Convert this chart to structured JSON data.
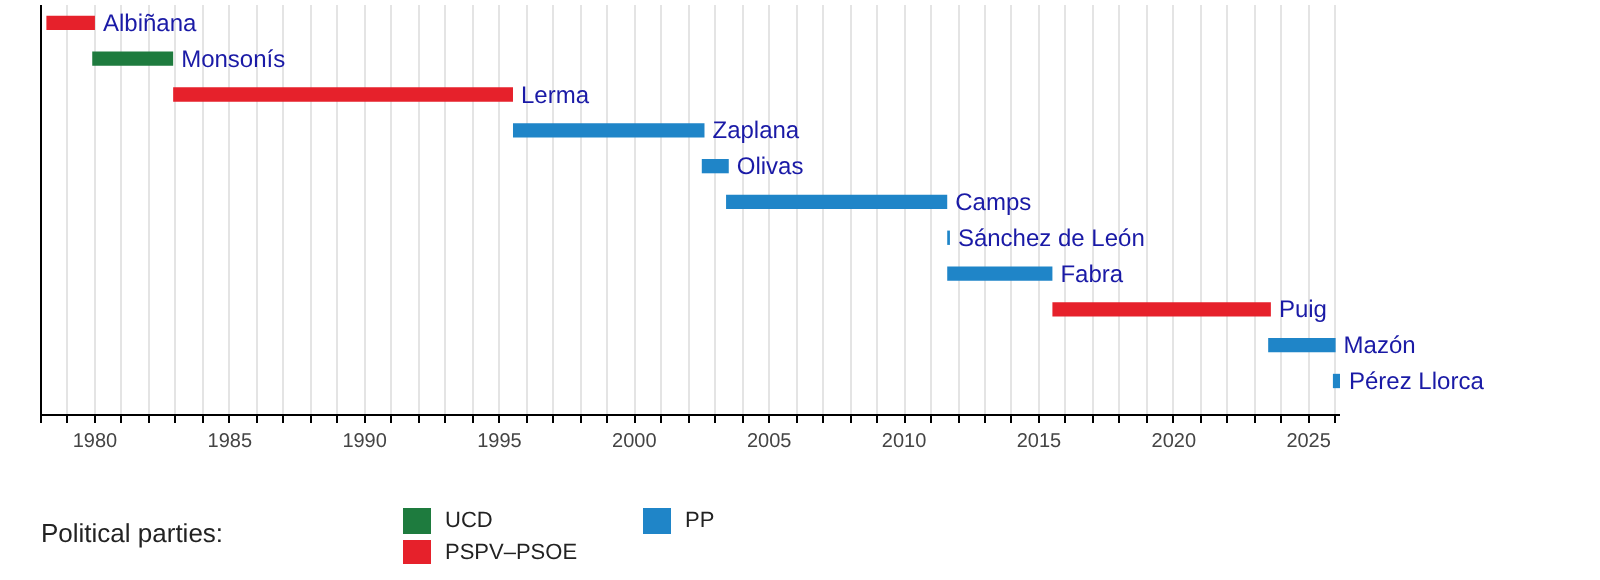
{
  "chart_data": {
    "type": "bar",
    "orientation": "horizontal",
    "legend_title": "Political parties:",
    "legend": "bottom",
    "grid": "x",
    "tick_labels": "x",
    "categories": [
      "Albiñana",
      "Monsonís",
      "Lerma",
      "Zaplana",
      "Olivas",
      "Camps",
      "Sánchez de León",
      "Fabra",
      "Puig",
      "Mazón",
      "Pérez Llorca"
    ],
    "xlim": [
      1978,
      2026.2
    ],
    "xticks": [
      {
        "value": 1978,
        "label": null
      },
      {
        "value": 1979,
        "label": null
      },
      1980,
      {
        "value": 1981,
        "label": null
      },
      {
        "value": 1982,
        "label": null
      },
      {
        "value": 1983,
        "label": null
      },
      {
        "value": 1984,
        "label": null
      },
      1985,
      {
        "value": 1986,
        "label": null
      },
      {
        "value": 1987,
        "label": null
      },
      {
        "value": 1988,
        "label": null
      },
      {
        "value": 1989,
        "label": null
      },
      1990,
      {
        "value": 1991,
        "label": null
      },
      {
        "value": 1992,
        "label": null
      },
      {
        "value": 1993,
        "label": null
      },
      {
        "value": 1994,
        "label": null
      },
      1995,
      {
        "value": 1996,
        "label": null
      },
      {
        "value": 1997,
        "label": null
      },
      {
        "value": 1998,
        "label": null
      },
      {
        "value": 1999,
        "label": null
      },
      2000,
      {
        "value": 2001,
        "label": null
      },
      {
        "value": 2002,
        "label": null
      },
      {
        "value": 2003,
        "label": null
      },
      {
        "value": 2004,
        "label": null
      },
      2005,
      {
        "value": 2006,
        "label": null
      },
      {
        "value": 2007,
        "label": null
      },
      {
        "value": 2008,
        "label": null
      },
      {
        "value": 2009,
        "label": null
      },
      2010,
      {
        "value": 2011,
        "label": null
      },
      {
        "value": 2012,
        "label": null
      },
      {
        "value": 2013,
        "label": null
      },
      {
        "value": 2014,
        "label": null
      },
      2015,
      {
        "value": 2016,
        "label": null
      },
      {
        "value": 2017,
        "label": null
      },
      {
        "value": 2018,
        "label": null
      },
      {
        "value": 2019,
        "label": null
      },
      2020,
      {
        "value": 2021,
        "label": null
      },
      {
        "value": 2022,
        "label": null
      },
      {
        "value": 2023,
        "label": null
      },
      {
        "value": 2024,
        "label": null
      },
      2025,
      {
        "value": 2026,
        "label": null
      }
    ],
    "series": [
      {
        "name": "UCD",
        "color": "#1e7b3e",
        "base": [
          null,
          1979.9,
          null,
          null,
          null,
          null,
          null,
          null,
          null,
          null,
          null
        ],
        "values": [
          null,
          3.0,
          null,
          null,
          null,
          null,
          null,
          null,
          null,
          null,
          null
        ]
      },
      {
        "name": "PSPV–PSOE",
        "color": "#e6212b",
        "base": [
          1978.2,
          null,
          1982.9,
          null,
          null,
          null,
          null,
          null,
          2015.5,
          null,
          null
        ],
        "values": [
          1.8,
          null,
          12.6,
          null,
          null,
          null,
          null,
          null,
          8.1,
          null,
          null
        ]
      },
      {
        "name": "PP",
        "color": "#1f85c8",
        "base": [
          null,
          null,
          null,
          1995.5,
          2002.5,
          2003.4,
          2011.6,
          2011.6,
          null,
          2023.5,
          2025.9
        ],
        "values": [
          null,
          null,
          null,
          7.1,
          1.0,
          8.2,
          0.1,
          3.9,
          null,
          2.5,
          0.3
        ]
      }
    ]
  }
}
